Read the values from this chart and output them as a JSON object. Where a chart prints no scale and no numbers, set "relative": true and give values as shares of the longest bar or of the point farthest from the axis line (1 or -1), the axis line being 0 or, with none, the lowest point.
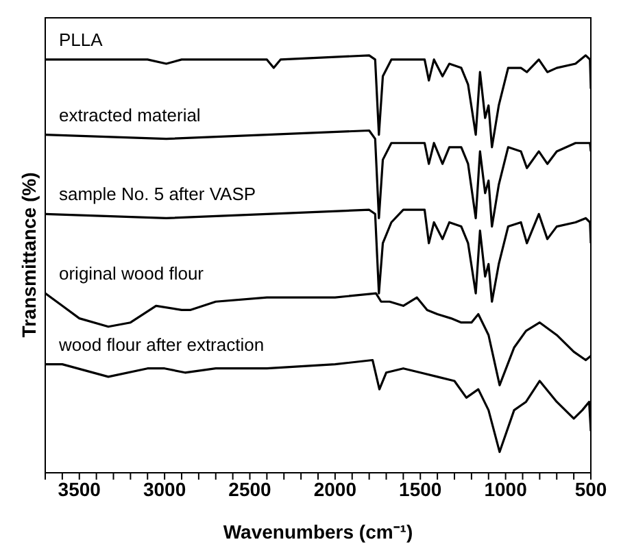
{
  "chart_data": {
    "type": "line",
    "relative": true,
    "xlabel": "Wavenumbers (cm⁻¹)",
    "ylabel": "Transmittance (%)",
    "marker": "none",
    "xlim": [
      3700,
      500
    ],
    "xticks": [
      {
        "value": 3700,
        "label": null
      },
      {
        "value": 3600,
        "label": null
      },
      3500,
      {
        "value": 3400,
        "label": null
      },
      {
        "value": 3300,
        "label": null
      },
      {
        "value": 3200,
        "label": null
      },
      {
        "value": 3100,
        "label": null
      },
      3000,
      {
        "value": 2900,
        "label": null
      },
      {
        "value": 2800,
        "label": null
      },
      {
        "value": 2700,
        "label": null
      },
      {
        "value": 2600,
        "label": null
      },
      2500,
      {
        "value": 2400,
        "label": null
      },
      {
        "value": 2300,
        "label": null
      },
      {
        "value": 2200,
        "label": null
      },
      {
        "value": 2100,
        "label": null
      },
      2000,
      {
        "value": 1900,
        "label": null
      },
      {
        "value": 1800,
        "label": null
      },
      {
        "value": 1700,
        "label": null
      },
      {
        "value": 1600,
        "label": null
      },
      1500,
      {
        "value": 1400,
        "label": null
      },
      {
        "value": 1300,
        "label": null
      },
      {
        "value": 1200,
        "label": null
      },
      {
        "value": 1100,
        "label": null
      },
      1000,
      {
        "value": 900,
        "label": null
      },
      {
        "value": 800,
        "label": null
      },
      {
        "value": 700,
        "label": null
      },
      {
        "value": 600,
        "label": null
      },
      500
    ],
    "series": [
      {
        "name": "PLLA",
        "color": "#000000",
        "x": [
          3700,
          3100,
          2990,
          2900,
          2400,
          2360,
          2320,
          1800,
          1765,
          1743,
          1720,
          1670,
          1500,
          1475,
          1450,
          1420,
          1370,
          1330,
          1260,
          1220,
          1175,
          1150,
          1120,
          1100,
          1080,
          1040,
          985,
          910,
          875,
          805,
          755,
          700,
          590,
          530,
          505,
          500
        ],
        "values": [
          0.99,
          0.99,
          0.98,
          0.99,
          0.99,
          0.97,
          0.99,
          1.0,
          0.99,
          0.81,
          0.95,
          0.99,
          0.99,
          0.99,
          0.94,
          0.99,
          0.95,
          0.98,
          0.97,
          0.93,
          0.81,
          0.96,
          0.85,
          0.88,
          0.78,
          0.88,
          0.97,
          0.97,
          0.96,
          0.99,
          0.96,
          0.97,
          0.98,
          1.0,
          0.99,
          0.92
        ]
      },
      {
        "name": "extracted material",
        "color": "#000000",
        "x": [
          3700,
          2990,
          2400,
          1800,
          1765,
          1743,
          1720,
          1670,
          1500,
          1475,
          1450,
          1420,
          1370,
          1330,
          1260,
          1220,
          1175,
          1150,
          1120,
          1100,
          1080,
          1040,
          985,
          910,
          875,
          805,
          755,
          700,
          590,
          530,
          505,
          500
        ],
        "values": [
          0.81,
          0.8,
          0.81,
          0.82,
          0.8,
          0.61,
          0.75,
          0.79,
          0.79,
          0.79,
          0.74,
          0.79,
          0.74,
          0.78,
          0.78,
          0.74,
          0.61,
          0.77,
          0.67,
          0.7,
          0.59,
          0.69,
          0.78,
          0.77,
          0.73,
          0.77,
          0.74,
          0.77,
          0.79,
          0.79,
          0.79,
          0.77
        ]
      },
      {
        "name": "sample No. 5 after VASP",
        "color": "#000000",
        "x": [
          3700,
          2990,
          2400,
          1800,
          1765,
          1743,
          1720,
          1670,
          1600,
          1475,
          1450,
          1420,
          1370,
          1330,
          1260,
          1220,
          1175,
          1150,
          1120,
          1100,
          1080,
          1040,
          985,
          910,
          875,
          805,
          755,
          700,
          590,
          530,
          505,
          500
        ],
        "values": [
          0.62,
          0.61,
          0.62,
          0.63,
          0.62,
          0.43,
          0.55,
          0.6,
          0.63,
          0.63,
          0.55,
          0.6,
          0.56,
          0.6,
          0.59,
          0.55,
          0.43,
          0.58,
          0.47,
          0.5,
          0.41,
          0.5,
          0.59,
          0.6,
          0.55,
          0.62,
          0.56,
          0.59,
          0.6,
          0.61,
          0.6,
          0.55
        ]
      },
      {
        "name": "original wood flour",
        "color": "#000000",
        "x": [
          3700,
          3600,
          3500,
          3330,
          3200,
          3050,
          2900,
          2850,
          2700,
          2400,
          2000,
          1760,
          1730,
          1680,
          1600,
          1520,
          1460,
          1400,
          1320,
          1260,
          1200,
          1160,
          1100,
          1035,
          950,
          880,
          800,
          700,
          600,
          530,
          500
        ],
        "values": [
          0.43,
          0.4,
          0.37,
          0.35,
          0.36,
          0.4,
          0.39,
          0.39,
          0.41,
          0.42,
          0.42,
          0.43,
          0.41,
          0.41,
          0.4,
          0.42,
          0.39,
          0.38,
          0.37,
          0.36,
          0.36,
          0.38,
          0.33,
          0.21,
          0.3,
          0.34,
          0.36,
          0.33,
          0.29,
          0.27,
          0.28
        ]
      },
      {
        "name": "wood flour after extraction",
        "color": "#000000",
        "x": [
          3700,
          3600,
          3330,
          3100,
          3000,
          2880,
          2700,
          2400,
          2000,
          1780,
          1740,
          1700,
          1600,
          1500,
          1400,
          1300,
          1230,
          1160,
          1100,
          1035,
          950,
          880,
          800,
          700,
          600,
          550,
          510,
          500
        ],
        "values": [
          0.26,
          0.26,
          0.23,
          0.25,
          0.25,
          0.24,
          0.25,
          0.25,
          0.26,
          0.27,
          0.2,
          0.24,
          0.25,
          0.24,
          0.23,
          0.22,
          0.18,
          0.2,
          0.15,
          0.05,
          0.15,
          0.17,
          0.22,
          0.17,
          0.13,
          0.15,
          0.17,
          0.1
        ]
      }
    ]
  }
}
